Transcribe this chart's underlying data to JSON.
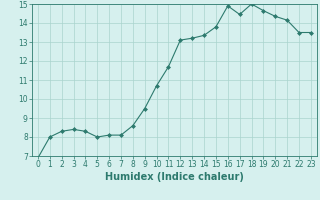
{
  "x": [
    0,
    1,
    2,
    3,
    4,
    5,
    6,
    7,
    8,
    9,
    10,
    11,
    12,
    13,
    14,
    15,
    16,
    17,
    18,
    19,
    20,
    21,
    22,
    23
  ],
  "y": [
    6.9,
    8.0,
    8.3,
    8.4,
    8.3,
    8.0,
    8.1,
    8.1,
    8.6,
    9.5,
    10.7,
    11.7,
    13.1,
    13.2,
    13.35,
    13.8,
    14.9,
    14.45,
    15.0,
    14.65,
    14.35,
    14.15,
    13.5,
    13.5
  ],
  "xlim": [
    -0.5,
    23.5
  ],
  "ylim": [
    7,
    15
  ],
  "yticks": [
    7,
    8,
    9,
    10,
    11,
    12,
    13,
    14,
    15
  ],
  "xticks": [
    0,
    1,
    2,
    3,
    4,
    5,
    6,
    7,
    8,
    9,
    10,
    11,
    12,
    13,
    14,
    15,
    16,
    17,
    18,
    19,
    20,
    21,
    22,
    23
  ],
  "xlabel": "Humidex (Indice chaleur)",
  "line_color": "#2d7a6e",
  "marker": "D",
  "marker_size": 2.0,
  "line_width": 0.8,
  "background_color": "#d6f0ee",
  "grid_color": "#aad4ce",
  "tick_label_fontsize": 5.5,
  "xlabel_fontsize": 7.0
}
